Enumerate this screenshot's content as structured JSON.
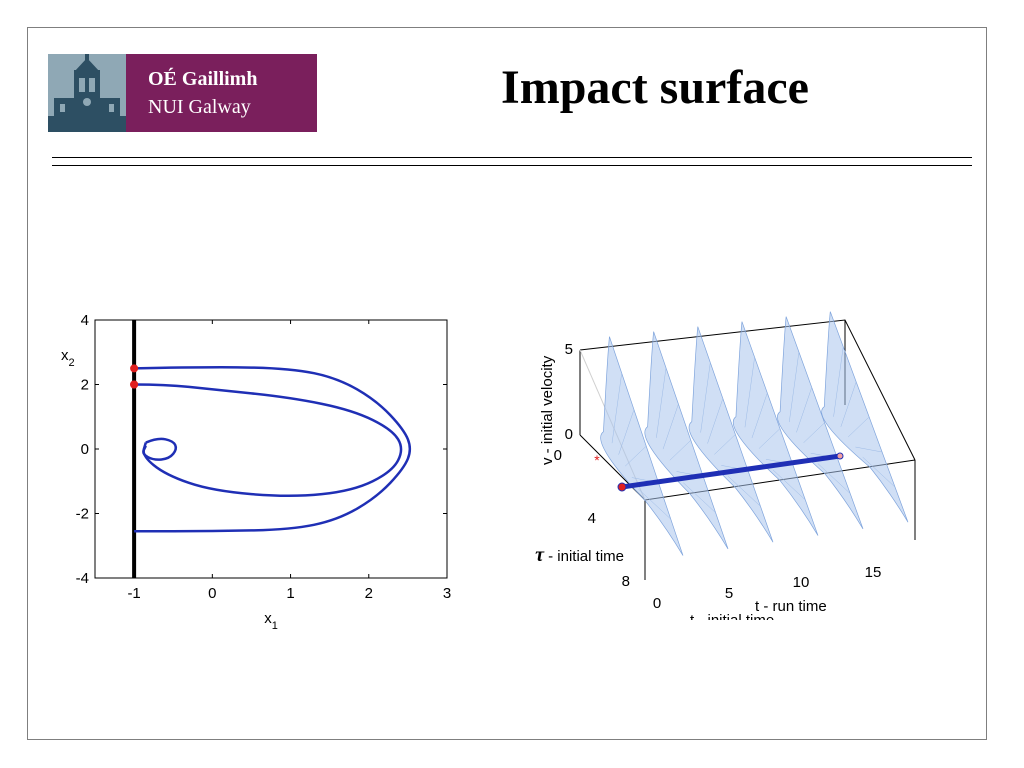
{
  "header": {
    "title": "Impact surface",
    "logo_line1": "OÉ Gaillimh",
    "logo_line2": "NUI Galway",
    "brand_color": "#7a1f5c"
  },
  "chart_data": [
    {
      "type": "line",
      "xlabel": "x",
      "xlabel_sub": "1",
      "ylabel": "x",
      "ylabel_sub": "2",
      "xlim": [
        -1.5,
        3
      ],
      "ylim": [
        -4,
        4
      ],
      "xticks": [
        "-1",
        "0",
        "1",
        "2",
        "3"
      ],
      "yticks": [
        "4",
        "2",
        "0",
        "-2",
        "-4"
      ],
      "xtick_values": [
        -1,
        0,
        1,
        2,
        3
      ],
      "ytick_values": [
        4,
        2,
        0,
        -2,
        -4
      ],
      "impact_wall_x": -1,
      "impact_points": [
        [
          -1,
          2.5
        ],
        [
          -1,
          2.0
        ],
        [
          -1,
          2.0
        ]
      ],
      "trajectory_color": "#1f2fb5",
      "marker_color": "#e02020",
      "series": [
        {
          "points": [
            [
              -1,
              2.5
            ],
            [
              0,
              2.55
            ],
            [
              1,
              2.5
            ],
            [
              1.6,
              2.2
            ],
            [
              2.1,
              1.5
            ],
            [
              2.45,
              0.6
            ],
            [
              2.55,
              0
            ],
            [
              2.45,
              -0.6
            ],
            [
              2.1,
              -1.5
            ],
            [
              1.6,
              -2.2
            ],
            [
              1,
              -2.5
            ],
            [
              0,
              -2.55
            ],
            [
              -1,
              -2.55
            ]
          ]
        },
        {
          "points": [
            [
              -1,
              2.0
            ],
            [
              -0.6,
              2.0
            ],
            [
              0,
              1.85
            ],
            [
              1,
              1.6
            ],
            [
              1.8,
              1.2
            ],
            [
              2.3,
              0.6
            ],
            [
              2.45,
              0
            ],
            [
              2.3,
              -0.7
            ],
            [
              1.8,
              -1.3
            ],
            [
              1,
              -1.5
            ],
            [
              0,
              -1.3
            ],
            [
              -0.6,
              -0.8
            ],
            [
              -0.9,
              -0.2
            ],
            [
              -0.85,
              0.2
            ]
          ]
        },
        {
          "points": [
            [
              -0.85,
              0.2
            ],
            [
              -0.7,
              0.35
            ],
            [
              -0.5,
              0.25
            ],
            [
              -0.45,
              0
            ],
            [
              -0.55,
              -0.3
            ],
            [
              -0.75,
              -0.35
            ],
            [
              -0.9,
              -0.15
            ],
            [
              -0.85,
              0.1
            ]
          ]
        }
      ]
    },
    {
      "type": "surface",
      "xlabel": "t - run time",
      "ylabel": " - initial time",
      "ylabel_symbol": "τ",
      "zlabel": "v - initial velocity",
      "hidden_label": "t - initial time",
      "xticks": [
        "0",
        "5",
        "10",
        "15"
      ],
      "yticks": [
        "0",
        "4",
        "8"
      ],
      "zticks": [
        "0",
        "5"
      ],
      "surface_color": "#aac4ec",
      "line_color": "#1f2fb5",
      "star_color": "#e02020",
      "peaks_t": [
        2,
        5,
        8,
        11,
        14,
        17
      ]
    }
  ]
}
